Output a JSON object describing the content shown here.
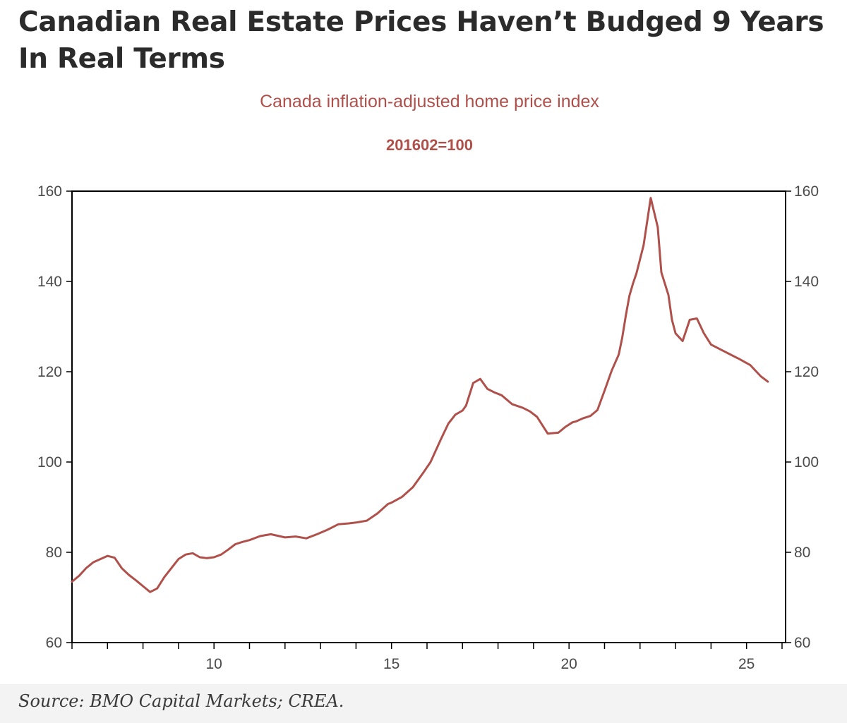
{
  "headline": "Canadian Real Estate Prices Haven’t Budged 9 Years In Real Terms",
  "source": "Source: BMO Capital Markets; CREA.",
  "colors": {
    "line": "#b0504b",
    "title": "#b0504b",
    "axis": "#000000",
    "headline": "#2b2b2b"
  },
  "chart_data": {
    "type": "line",
    "title": "Canada inflation-adjusted home price index",
    "subtitle": "201602=100",
    "xlabel": "",
    "ylabel": "",
    "grid": false,
    "legend": "none",
    "xlim": [
      2006.0,
      2026.1
    ],
    "ylim": [
      60,
      160
    ],
    "x_ticks": [
      10,
      15,
      20,
      25
    ],
    "y_ticks": [
      60,
      80,
      100,
      120,
      140,
      160
    ],
    "series": [
      {
        "x": [
          2006.0,
          2006.2,
          2006.4,
          2006.6,
          2006.8,
          2007.0,
          2007.2,
          2007.4,
          2007.6,
          2007.8,
          2008.0,
          2008.2,
          2008.4,
          2008.6,
          2008.8,
          2009.0,
          2009.2,
          2009.4,
          2009.6,
          2009.8,
          2010.0,
          2010.2,
          2010.4,
          2010.6,
          2010.8,
          2011.0,
          2011.3,
          2011.6,
          2012.0,
          2012.3,
          2012.6,
          2012.9,
          2013.2,
          2013.5,
          2013.8,
          2014.0,
          2014.3,
          2014.6,
          2014.9,
          2015.0,
          2015.3,
          2015.6,
          2015.9,
          2016.1,
          2016.4,
          2016.6,
          2016.8,
          2017.0,
          2017.1,
          2017.3,
          2017.5,
          2017.7,
          2017.9,
          2018.1,
          2018.4,
          2018.7,
          2018.9,
          2019.1,
          2019.4,
          2019.7,
          2019.9,
          2020.1,
          2020.2,
          2020.4,
          2020.6,
          2020.8,
          2021.0,
          2021.2,
          2021.4,
          2021.5,
          2021.6,
          2021.7,
          2021.8,
          2021.9,
          2022.1,
          2022.3,
          2022.5,
          2022.6,
          2022.8,
          2022.9,
          2023.0,
          2023.2,
          2023.4,
          2023.6,
          2023.8,
          2024.0,
          2024.3,
          2024.6,
          2024.8,
          2025.1,
          2025.4,
          2025.6
        ],
        "y": [
          73.5,
          74.8,
          76.5,
          77.8,
          78.5,
          79.2,
          78.8,
          76.5,
          75.0,
          73.8,
          72.5,
          71.2,
          72.0,
          74.5,
          76.5,
          78.5,
          79.5,
          79.8,
          78.9,
          78.7,
          78.9,
          79.5,
          80.6,
          81.8,
          82.3,
          82.7,
          83.6,
          84.0,
          83.3,
          83.5,
          83.1,
          84.0,
          85.0,
          86.2,
          86.4,
          86.6,
          87.0,
          88.6,
          90.7,
          91.0,
          92.3,
          94.4,
          97.7,
          100.0,
          105.2,
          108.5,
          110.5,
          111.4,
          112.5,
          117.5,
          118.4,
          116.2,
          115.4,
          114.8,
          112.8,
          112.0,
          111.2,
          110.0,
          106.3,
          106.5,
          107.8,
          108.8,
          109.0,
          109.7,
          110.2,
          111.5,
          115.8,
          120.2,
          123.8,
          127.6,
          132.5,
          136.8,
          139.5,
          141.8,
          148.0,
          158.5,
          152.0,
          142.0,
          137.0,
          131.5,
          128.5,
          126.8,
          131.5,
          131.8,
          128.5,
          126.0,
          124.8,
          123.6,
          122.8,
          121.5,
          119.0,
          117.8
        ]
      }
    ]
  }
}
